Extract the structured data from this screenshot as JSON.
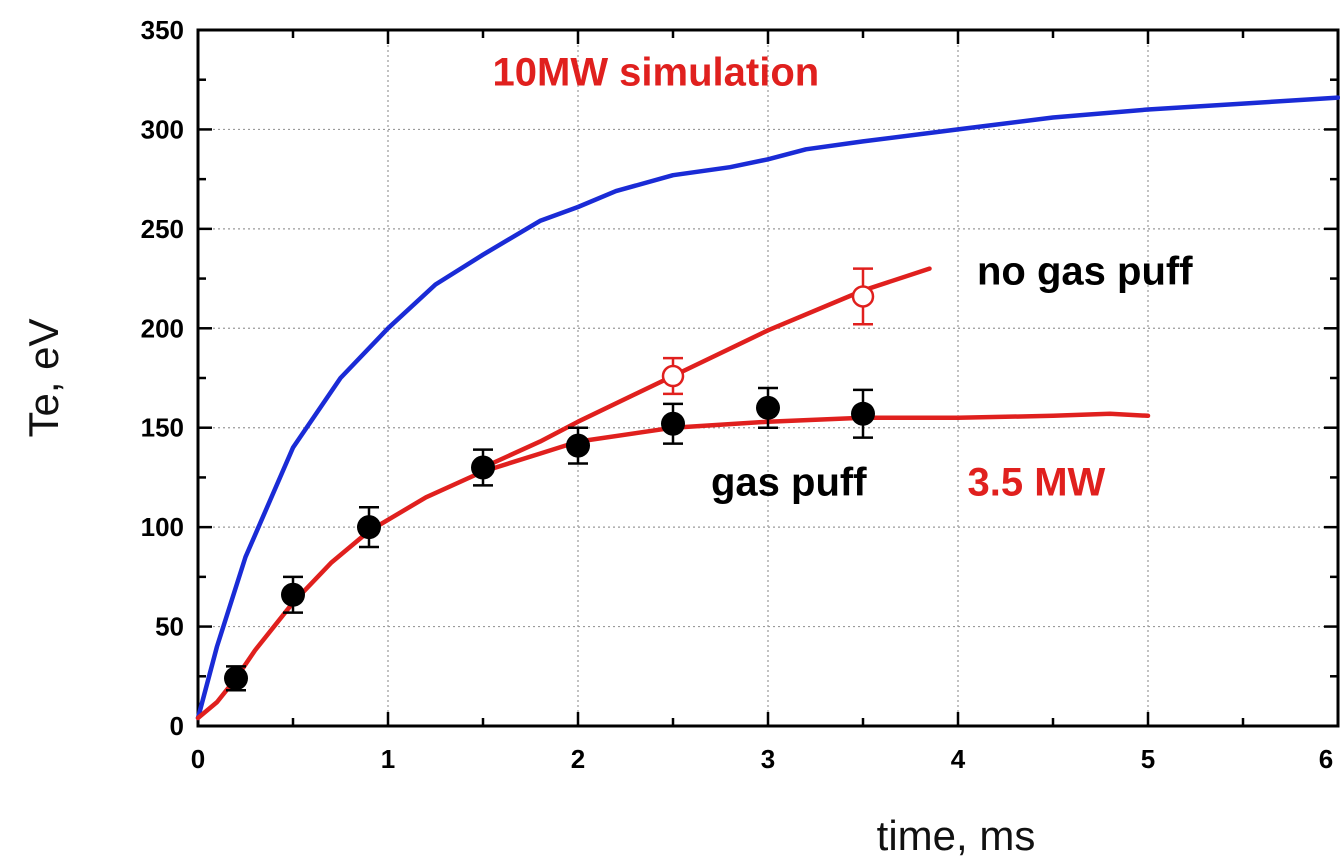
{
  "chart_data": {
    "type": "line",
    "xlabel": "time, ms",
    "ylabel": "Te, eV",
    "xlim": [
      0,
      6
    ],
    "ylim": [
      0,
      350
    ],
    "x_ticks": [
      0,
      1,
      2,
      3,
      4,
      5,
      6
    ],
    "y_ticks": [
      0,
      50,
      100,
      150,
      200,
      250,
      300,
      350
    ],
    "grid": true,
    "series": [
      {
        "kind": "line",
        "color": "#1a2bd6",
        "x": [
          0,
          0.1,
          0.25,
          0.5,
          0.75,
          1.0,
          1.25,
          1.5,
          1.8,
          2.0,
          2.2,
          2.5,
          2.8,
          3.0,
          3.2,
          3.5,
          4.0,
          4.5,
          5.0,
          5.5,
          6.0
        ],
        "y": [
          4,
          40,
          85,
          140,
          175,
          200,
          222,
          237,
          254,
          261,
          269,
          277,
          281,
          285,
          290,
          294,
          300,
          306,
          310,
          313,
          316
        ]
      },
      {
        "kind": "line",
        "color": "#e0201e",
        "x": [
          0,
          0.1,
          0.2,
          0.3,
          0.5,
          0.7,
          0.9,
          1.2,
          1.5,
          1.8,
          2.0,
          2.5,
          3.0,
          3.5,
          4.0,
          4.5,
          4.8,
          5.0
        ],
        "y": [
          4,
          12,
          24,
          38,
          62,
          82,
          98,
          115,
          128,
          137,
          143,
          150,
          153,
          155,
          155,
          156,
          157,
          156
        ]
      },
      {
        "kind": "line",
        "color": "#e0201e",
        "x": [
          1.5,
          1.8,
          2.0,
          2.5,
          3.0,
          3.5,
          3.85
        ],
        "y": [
          130,
          143,
          153,
          176,
          199,
          219,
          230
        ]
      },
      {
        "kind": "scatter",
        "marker": "filled-circle",
        "color": "#000000",
        "x": [
          0.2,
          0.5,
          0.9,
          1.5,
          2.0,
          2.5,
          3.0,
          3.5
        ],
        "y": [
          24,
          66,
          100,
          130,
          141,
          152,
          160,
          157
        ],
        "yerr": [
          6,
          9,
          10,
          9,
          9,
          10,
          10,
          12
        ]
      },
      {
        "kind": "scatter",
        "marker": "open-circle",
        "color": "#e0201e",
        "x": [
          2.5,
          3.5
        ],
        "y": [
          176,
          216
        ],
        "yerr": [
          9,
          14
        ]
      }
    ],
    "annotations": [
      {
        "text": "10MW simulation",
        "color": "#e0201e",
        "x": 1.55,
        "y": 322
      },
      {
        "text": "no gas puff",
        "color": "#000000",
        "x": 4.1,
        "y": 222
      },
      {
        "text": "gas puff",
        "color": "#000000",
        "x": 2.7,
        "y": 116
      },
      {
        "text": "3.5 MW",
        "color": "#e0201e",
        "x": 4.05,
        "y": 116
      }
    ]
  }
}
